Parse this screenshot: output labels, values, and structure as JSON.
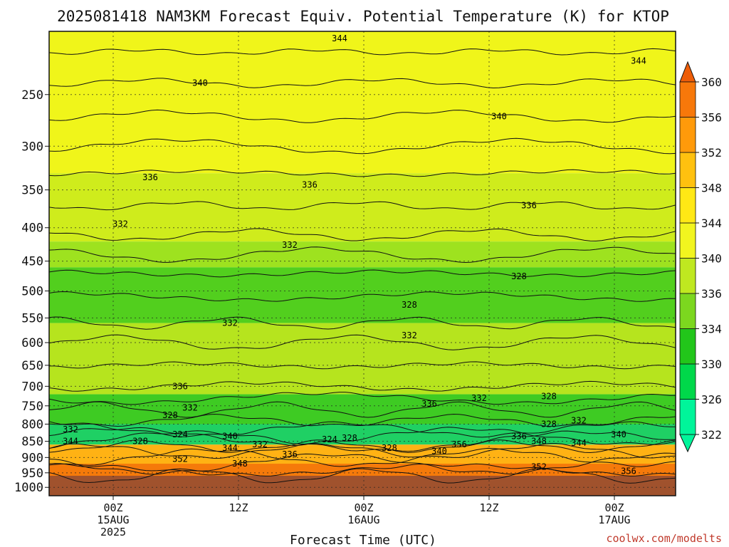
{
  "chart_data": {
    "type": "heatmap",
    "title": "2025081418 NAM3KM Forecast Equiv. Potential Temperature (K) for KTOP",
    "xlabel": "Forecast Time (UTC)",
    "ylabel": "",
    "y_scale": "log-pressure",
    "ylim": [
      1000,
      200
    ],
    "x_ticks": [
      {
        "line1": "00Z",
        "line2": "15AUG",
        "line3": "2025"
      },
      {
        "line1": "12Z",
        "line2": "",
        "line3": ""
      },
      {
        "line1": "00Z",
        "line2": "16AUG",
        "line3": ""
      },
      {
        "line1": "12Z",
        "line2": "",
        "line3": ""
      },
      {
        "line1": "00Z",
        "line2": "17AUG",
        "line3": ""
      }
    ],
    "y_ticks": [
      "250",
      "300",
      "350",
      "400",
      "450",
      "500",
      "550",
      "600",
      "650",
      "700",
      "750",
      "800",
      "850",
      "900",
      "950",
      "1000"
    ],
    "colorbar": {
      "levels": [
        "322",
        "326",
        "330",
        "334",
        "336",
        "340",
        "344",
        "348",
        "352",
        "356",
        "360"
      ],
      "colors": [
        "#00f59a",
        "#00d84a",
        "#22c61a",
        "#7cd71f",
        "#bfe820",
        "#f2f51f",
        "#ffe815",
        "#ffc10f",
        "#ff9a0a",
        "#f7780a",
        "#ee5d08"
      ]
    },
    "layers": [
      {
        "range": "above 340",
        "p_top": 200,
        "p_bottom": 330,
        "color": "#f0f51a"
      },
      {
        "range": "336-340",
        "p_top": 330,
        "p_bottom": 420,
        "color": "#cfec1c"
      },
      {
        "range": "332-336",
        "p_top": 420,
        "p_bottom": 460,
        "color": "#9ee21f"
      },
      {
        "range": "328-332",
        "p_top": 460,
        "p_bottom": 560,
        "color": "#52cf1e"
      },
      {
        "range": "332-336",
        "p_top": 560,
        "p_bottom": 720,
        "color": "#b6e41e"
      },
      {
        "range": "328-336",
        "p_top": 720,
        "p_bottom": 800,
        "color": "#3ecb23"
      },
      {
        "range": "324-328",
        "p_top": 800,
        "p_bottom": 860,
        "color": "#1fd064"
      },
      {
        "range": "344-352",
        "p_top": 860,
        "p_bottom": 980,
        "color": "#ffb214"
      },
      {
        "range": "352-360",
        "p_top": 920,
        "p_bottom": 980,
        "color": "#f57a0a"
      }
    ],
    "contour_labels": [
      {
        "text": "344",
        "t": 27,
        "p": 205
      },
      {
        "text": "344",
        "t": 57,
        "p": 222
      },
      {
        "text": "340",
        "t": 13,
        "p": 240
      },
      {
        "text": "340",
        "t": 43,
        "p": 270
      },
      {
        "text": "336",
        "t": 8,
        "p": 335
      },
      {
        "text": "336",
        "t": 24,
        "p": 344
      },
      {
        "text": "336",
        "t": 46,
        "p": 370
      },
      {
        "text": "332",
        "t": 5,
        "p": 395
      },
      {
        "text": "332",
        "t": 22,
        "p": 425
      },
      {
        "text": "328",
        "t": 45,
        "p": 475
      },
      {
        "text": "328",
        "t": 34,
        "p": 525
      },
      {
        "text": "332",
        "t": 16,
        "p": 560
      },
      {
        "text": "332",
        "t": 34,
        "p": 585
      },
      {
        "text": "336",
        "t": 11,
        "p": 700
      },
      {
        "text": "332",
        "t": 12,
        "p": 755
      },
      {
        "text": "328",
        "t": 10,
        "p": 775
      },
      {
        "text": "336",
        "t": 36,
        "p": 745
      },
      {
        "text": "332",
        "t": 41,
        "p": 730
      },
      {
        "text": "328",
        "t": 48,
        "p": 725
      },
      {
        "text": "332",
        "t": 51,
        "p": 790
      },
      {
        "text": "328",
        "t": 48,
        "p": 800
      },
      {
        "text": "340",
        "t": 55,
        "p": 830
      },
      {
        "text": "332",
        "t": 0,
        "p": 815
      },
      {
        "text": "344",
        "t": 0,
        "p": 850
      },
      {
        "text": "328",
        "t": 7,
        "p": 850
      },
      {
        "text": "324",
        "t": 11,
        "p": 830
      },
      {
        "text": "340",
        "t": 16,
        "p": 835
      },
      {
        "text": "344",
        "t": 16,
        "p": 870
      },
      {
        "text": "332",
        "t": 19,
        "p": 860
      },
      {
        "text": "336",
        "t": 22,
        "p": 890
      },
      {
        "text": "324",
        "t": 26,
        "p": 845
      },
      {
        "text": "328",
        "t": 28,
        "p": 840
      },
      {
        "text": "328",
        "t": 32,
        "p": 870
      },
      {
        "text": "340",
        "t": 37,
        "p": 880
      },
      {
        "text": "356",
        "t": 39,
        "p": 860
      },
      {
        "text": "336",
        "t": 45,
        "p": 835
      },
      {
        "text": "348",
        "t": 47,
        "p": 850
      },
      {
        "text": "344",
        "t": 51,
        "p": 855
      },
      {
        "text": "352",
        "t": 11,
        "p": 905
      },
      {
        "text": "348",
        "t": 17,
        "p": 920
      },
      {
        "text": "352",
        "t": 47,
        "p": 930
      },
      {
        "text": "356",
        "t": 56,
        "p": 945
      }
    ]
  },
  "credit": "coolwx.com/modelts"
}
